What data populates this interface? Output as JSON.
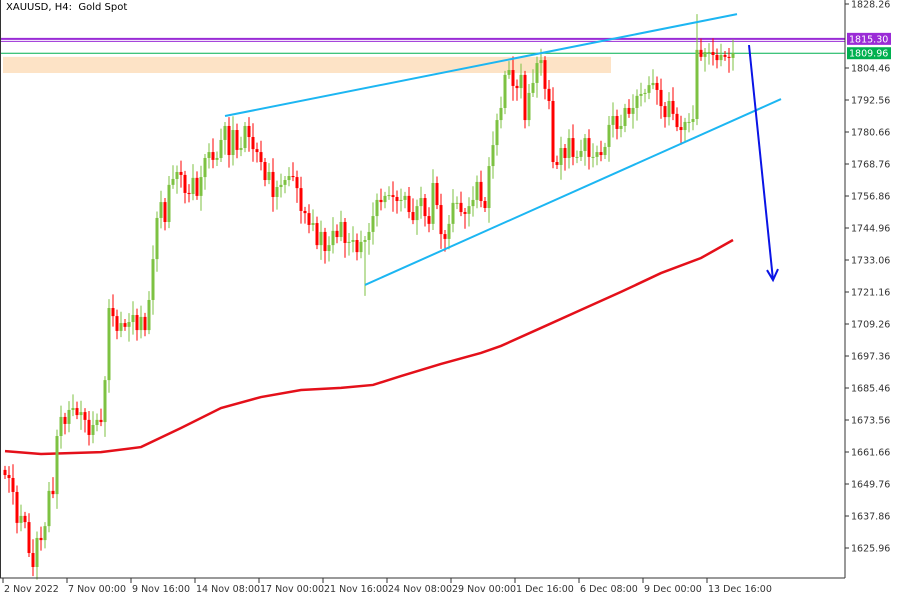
{
  "header": {
    "symbol": "XAUUSD, H4:",
    "description": "Gold Spot"
  },
  "colors": {
    "bull": "#7dc242",
    "bear": "#ff0000",
    "ma": "#e4101a",
    "channel": "#1cb6f2",
    "arrow": "#0a14e6",
    "resistance": "#9a2bd6",
    "price_line": "#00b050",
    "zone": "#fde3c6"
  },
  "chart_data": {
    "type": "candlestick",
    "yaxis_ticks": [
      "1828.26",
      "1804.46",
      "1792.56",
      "1780.66",
      "1768.76",
      "1756.86",
      "1744.96",
      "1733.06",
      "1721.16",
      "1709.26",
      "1697.36",
      "1685.46",
      "1673.56",
      "1661.66",
      "1649.76",
      "1637.86",
      "1625.96"
    ],
    "ylim": [
      1614.8,
      1829.75
    ],
    "xaxis_ticks": [
      {
        "bar": 0,
        "label": "2 Nov 2022"
      },
      {
        "bar": 16,
        "label": "7 Nov 00:00"
      },
      {
        "bar": 32,
        "label": "9 Nov 16:00"
      },
      {
        "bar": 48,
        "label": "14 Nov 08:00"
      },
      {
        "bar": 64,
        "label": "17 Nov 00:00"
      },
      {
        "bar": 80,
        "label": "21 Nov 16:00"
      },
      {
        "bar": 96,
        "label": "24 Nov 08:00"
      },
      {
        "bar": 112,
        "label": "29 Nov 00:00"
      },
      {
        "bar": 128,
        "label": "1 Dec 16:00"
      },
      {
        "bar": 144,
        "label": "6 Dec 08:00"
      },
      {
        "bar": 160,
        "label": "9 Dec 00:00"
      },
      {
        "bar": 176,
        "label": "13 Dec 16:00"
      }
    ],
    "first_open": 1655.0,
    "closes": [
      1653.1,
      1652.0,
      1646.8,
      1635.3,
      1637.9,
      1635.6,
      1624.1,
      1618.9,
      1629.7,
      1628.9,
      1634.1,
      1647.2,
      1646.0,
      1667.6,
      1674.7,
      1672.1,
      1677.3,
      1678.0,
      1675.4,
      1676.5,
      1673.6,
      1668.0,
      1671.7,
      1673.6,
      1672.8,
      1688.4,
      1715.2,
      1712.2,
      1706.7,
      1709.6,
      1708.2,
      1710.0,
      1712.6,
      1707.0,
      1711.9,
      1707.0,
      1718.2,
      1733.4,
      1748.7,
      1754.6,
      1747.2,
      1761.0,
      1763.2,
      1765.8,
      1764.7,
      1758.0,
      1757.6,
      1763.6,
      1756.9,
      1763.9,
      1771.0,
      1773.2,
      1770.3,
      1771.0,
      1777.7,
      1782.9,
      1772.1,
      1781.4,
      1774.0,
      1774.7,
      1782.9,
      1778.8,
      1774.3,
      1773.2,
      1769.5,
      1762.8,
      1765.8,
      1756.5,
      1760.2,
      1761.0,
      1762.8,
      1764.3,
      1763.9,
      1759.8,
      1751.3,
      1750.5,
      1746.1,
      1746.8,
      1738.6,
      1743.5,
      1736.4,
      1738.6,
      1743.9,
      1741.6,
      1747.2,
      1739.4,
      1739.8,
      1740.5,
      1736.0,
      1739.8,
      1740.5,
      1743.5,
      1749.4,
      1755.4,
      1754.6,
      1756.9,
      1757.2,
      1756.5,
      1755.0,
      1755.4,
      1756.9,
      1750.9,
      1747.9,
      1753.1,
      1756.1,
      1749.4,
      1746.5,
      1761.7,
      1753.5,
      1742.7,
      1740.9,
      1746.5,
      1754.3,
      1754.3,
      1750.9,
      1750.2,
      1753.1,
      1755.4,
      1762.1,
      1755.0,
      1752.4,
      1768.0,
      1775.8,
      1785.1,
      1789.6,
      1801.9,
      1803.7,
      1797.8,
      1797.0,
      1801.9,
      1785.1,
      1795.2,
      1798.9,
      1806.3,
      1807.4,
      1796.7,
      1792.2,
      1769.5,
      1768.4,
      1774.7,
      1771.0,
      1778.4,
      1771.4,
      1771.4,
      1773.6,
      1778.4,
      1771.4,
      1771.4,
      1773.2,
      1772.1,
      1775.1,
      1783.3,
      1786.6,
      1781.8,
      1782.9,
      1789.6,
      1787.4,
      1789.6,
      1794.1,
      1794.8,
      1795.2,
      1798.1,
      1798.9,
      1796.3,
      1790.3,
      1786.2,
      1792.2,
      1787.4,
      1782.5,
      1781.4,
      1784.4,
      1784.4,
      1785.5,
      1811.2,
      1808.6,
      1810.4,
      1810.4,
      1809.3,
      1807.4,
      1809.3,
      1808.6,
      1808.2,
      1810.0
    ],
    "moving_average": [
      {
        "bar": 0,
        "value": 1662.0
      },
      {
        "bar": 9,
        "value": 1660.9
      },
      {
        "bar": 24,
        "value": 1661.6
      },
      {
        "bar": 34,
        "value": 1663.5
      },
      {
        "bar": 44,
        "value": 1670.6
      },
      {
        "bar": 54,
        "value": 1678.0
      },
      {
        "bar": 64,
        "value": 1682.1
      },
      {
        "bar": 74,
        "value": 1684.7
      },
      {
        "bar": 84,
        "value": 1685.5
      },
      {
        "bar": 92,
        "value": 1686.6
      },
      {
        "bar": 99,
        "value": 1689.9
      },
      {
        "bar": 109,
        "value": 1694.4
      },
      {
        "bar": 119,
        "value": 1698.5
      },
      {
        "bar": 124,
        "value": 1701.1
      },
      {
        "bar": 134,
        "value": 1707.8
      },
      {
        "bar": 144,
        "value": 1714.5
      },
      {
        "bar": 154,
        "value": 1721.2
      },
      {
        "bar": 164,
        "value": 1728.2
      },
      {
        "bar": 174,
        "value": 1733.8
      },
      {
        "bar": 182,
        "value": 1740.5
      }
    ],
    "upper_trendline": [
      {
        "bar": 55,
        "value": 1786.6
      },
      {
        "bar": 183,
        "value": 1824.5
      }
    ],
    "lower_trendline": [
      {
        "bar": 90,
        "value": 1723.8
      },
      {
        "bar": 194,
        "value": 1792.9
      }
    ],
    "forecast_arrow": [
      {
        "bar": 186,
        "value": 1813.0
      },
      {
        "bar": 192,
        "value": 1725.6
      }
    ],
    "resistance_level": {
      "value": 1815.3,
      "label": "1815.30"
    },
    "current_price": {
      "value": 1809.96,
      "label": "1809.96"
    },
    "supply_zone": {
      "from_bar": 0,
      "to_bar": 151,
      "low": 1802.6,
      "high": 1808.6
    }
  }
}
